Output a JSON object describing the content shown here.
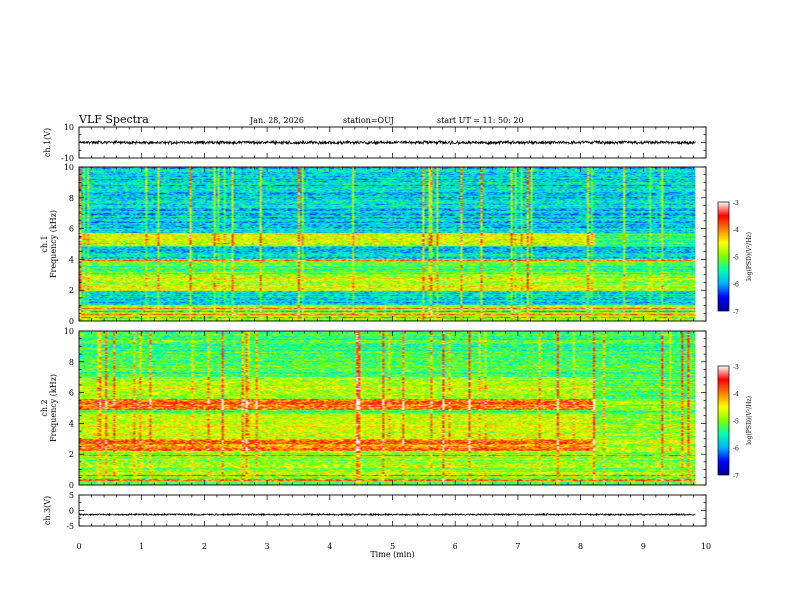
{
  "header": {
    "title": "VLF Spectra",
    "date": "Jan. 28, 2026",
    "station": "station=OUJ",
    "start_time": "start UT =  11: 50: 20"
  },
  "x_axis": {
    "label": "Time (min)",
    "range": [
      0,
      10
    ],
    "ticks": [
      "0",
      "1",
      "2",
      "3",
      "4",
      "5",
      "6",
      "7",
      "8",
      "9",
      "10"
    ]
  },
  "colorbar": {
    "label": "log(PSD)(V²/Hz)",
    "range": [
      -7,
      -3
    ],
    "ticks": [
      "-3",
      "-4",
      "-5",
      "-6",
      "-7"
    ],
    "colors": [
      "#00008f",
      "#0000ff",
      "#00b0ff",
      "#00ffb0",
      "#7fff00",
      "#ffff00",
      "#ff8000",
      "#ff0000",
      "#ffffff"
    ]
  },
  "panels": [
    {
      "key": "ch1v",
      "ylabel": "ch.1(V)",
      "ticks": [
        "10",
        "-10"
      ]
    },
    {
      "key": "spec1",
      "ylabel_line1": "ch.1",
      "ylabel_line2": "Frequency (kHz)",
      "ticks": [
        "10",
        "8",
        "6",
        "4",
        "2",
        "0"
      ]
    },
    {
      "key": "spec2",
      "ylabel_line1": "ch.2",
      "ylabel_line2": "Frequency (kHz)",
      "ticks": [
        "10",
        "8",
        "6",
        "4",
        "2",
        "0"
      ]
    },
    {
      "key": "ch3v",
      "ylabel": "ch.3(V)",
      "ticks": [
        "5",
        "0",
        "-5"
      ]
    }
  ],
  "chart_data": [
    {
      "type": "line",
      "name": "ch.1(V)",
      "xlabel": "Time (min)",
      "ylabel": "ch.1(V)",
      "xlim": [
        0,
        9.83
      ],
      "ylim": [
        -10,
        10
      ],
      "mean": 0,
      "noise_amplitude": 1.2
    },
    {
      "type": "heatmap",
      "name": "ch.1",
      "xlabel": "Time (min)",
      "ylabel": "Frequency (kHz)",
      "xlim": [
        0,
        9.83
      ],
      "ylim": [
        0,
        10
      ],
      "zlim": [
        -7,
        -3
      ],
      "zlabel": "log(PSD)(V²/Hz)",
      "background_level": -5.8,
      "change_time_min": 8.25,
      "bands": [
        {
          "f_min": 4.9,
          "f_max": 5.7,
          "level": -4.6,
          "level_after": -5.3
        },
        {
          "f_min": 1.9,
          "f_max": 3.0,
          "level": -4.7,
          "level_after": -4.9
        },
        {
          "f_min": 3.0,
          "f_max": 4.0,
          "level": -5.2,
          "level_after": -5.3
        },
        {
          "f_min": 0.0,
          "f_max": 1.0,
          "level": -5.0,
          "level_after": -5.0
        },
        {
          "f_min": 7.0,
          "f_max": 8.0,
          "level": -6.5,
          "level_after": -6.2
        }
      ],
      "lines_khz": [
        4.0,
        3.9,
        0.2,
        0.4,
        0.6,
        0.8
      ]
    },
    {
      "type": "heatmap",
      "name": "ch.2",
      "xlabel": "Time (min)",
      "ylabel": "Frequency (kHz)",
      "xlim": [
        0,
        9.83
      ],
      "ylim": [
        0,
        10
      ],
      "zlim": [
        -7,
        -3
      ],
      "zlabel": "log(PSD)(V²/Hz)",
      "background_level": -5.3,
      "change_time_min": 8.25,
      "bands": [
        {
          "f_min": 4.9,
          "f_max": 5.6,
          "level": -3.9,
          "level_after": -4.9
        },
        {
          "f_min": 2.2,
          "f_max": 3.0,
          "level": -4.0,
          "level_after": -4.8
        },
        {
          "f_min": 3.0,
          "f_max": 4.6,
          "level": -4.7,
          "level_after": -5.0
        },
        {
          "f_min": 5.6,
          "f_max": 7.0,
          "level": -4.8,
          "level_after": -5.2
        },
        {
          "f_min": 0.5,
          "f_max": 2.2,
          "level": -4.9,
          "level_after": -5.0
        }
      ],
      "lines_khz": [
        1.9,
        0.3,
        0.6
      ]
    },
    {
      "type": "line",
      "name": "ch.3(V)",
      "xlabel": "Time (min)",
      "ylabel": "ch.3(V)",
      "xlim": [
        0,
        9.83
      ],
      "ylim": [
        -5,
        5
      ],
      "mean": -1.3,
      "noise_amplitude": 0.3
    }
  ]
}
